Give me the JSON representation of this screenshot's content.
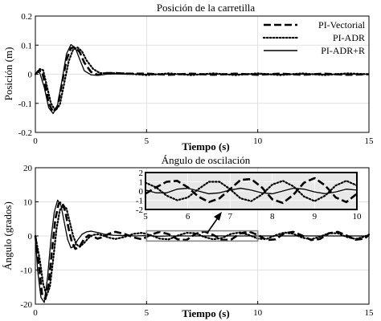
{
  "chart_data": [
    {
      "type": "line",
      "title": "Posición de la carretilla",
      "xlabel": "Tiempo (s)",
      "ylabel": "Posición (m)",
      "xlim": [
        0,
        15
      ],
      "ylim": [
        -0.2,
        0.2
      ],
      "x_ticks": [
        0,
        5,
        10,
        15
      ],
      "y_ticks": [
        -0.2,
        -0.1,
        0,
        0.1,
        0.2
      ],
      "x_tick_labels": [
        "0",
        "5",
        "10",
        "15"
      ],
      "y_tick_labels": [
        "-0.2",
        "-0.1",
        "0",
        "0.1",
        "0.2"
      ],
      "grid": true,
      "legend_position": "top-right",
      "series": [
        {
          "name": "PI-Vectorial",
          "style": "dashed",
          "x": [
            0,
            0.15,
            0.3,
            0.45,
            0.6,
            0.8,
            1.0,
            1.2,
            1.4,
            1.6,
            1.8,
            2.0,
            2.2,
            2.5,
            2.8,
            3.2,
            3.6,
            4.0,
            5.0,
            6.0,
            7.0,
            8.0,
            9.0,
            10.0,
            11.0,
            12.0,
            13.0,
            14.0,
            15.0
          ],
          "y": [
            0,
            0.012,
            0.01,
            -0.04,
            -0.1,
            -0.13,
            -0.11,
            -0.03,
            0.05,
            0.09,
            0.093,
            0.075,
            0.04,
            0.008,
            -0.002,
            0.004,
            0.004,
            0.002,
            0.002,
            -0.002,
            0.002,
            -0.002,
            0.002,
            -0.002,
            0.002,
            -0.002,
            0.002,
            -0.002,
            0.0
          ]
        },
        {
          "name": "PI-ADR",
          "style": "dotted",
          "x": [
            0,
            0.2,
            0.35,
            0.5,
            0.7,
            0.9,
            1.1,
            1.3,
            1.5,
            1.7,
            1.9,
            2.1,
            2.3,
            2.6,
            2.9,
            3.3,
            3.7,
            4.2,
            5.0,
            6.0,
            7.0,
            8.0,
            9.0,
            10.0,
            11.0,
            12.0,
            13.0,
            14.0,
            15.0
          ],
          "y": [
            0,
            0.018,
            0.014,
            -0.035,
            -0.1,
            -0.125,
            -0.105,
            -0.03,
            0.045,
            0.085,
            0.092,
            0.078,
            0.048,
            0.018,
            0.004,
            0.003,
            0.004,
            0.002,
            -0.003,
            0.003,
            -0.003,
            0.003,
            -0.003,
            0.003,
            -0.003,
            0.003,
            -0.003,
            0.003,
            0.0
          ]
        },
        {
          "name": "PI-ADR+R",
          "style": "solid",
          "x": [
            0,
            0.1,
            0.2,
            0.4,
            0.6,
            0.8,
            1.0,
            1.2,
            1.4,
            1.6,
            1.8,
            2.0,
            2.2,
            2.5,
            2.8,
            3.2,
            3.6,
            4.0,
            5.0,
            6.0,
            7.0,
            8.0,
            9.0,
            10.0,
            11.0,
            12.0,
            13.0,
            14.0,
            15.0
          ],
          "y": [
            0,
            0.008,
            0.004,
            -0.045,
            -0.115,
            -0.135,
            -0.105,
            -0.02,
            0.07,
            0.102,
            0.09,
            0.05,
            0.012,
            -0.002,
            -0.004,
            0.0,
            0.001,
            0.0,
            0.0,
            0.0,
            0.0,
            0.0,
            0.0,
            0.0,
            0.0,
            0.0,
            0.0,
            0.0,
            0.0
          ]
        }
      ]
    },
    {
      "type": "line",
      "title": "Ángulo de oscilación",
      "xlabel": "Tiempo (s)",
      "ylabel": "Ángulo (grados)",
      "xlim": [
        0,
        15
      ],
      "ylim": [
        -20,
        20
      ],
      "x_ticks": [
        0,
        5,
        10,
        15
      ],
      "y_ticks": [
        -20,
        -10,
        0,
        10,
        20
      ],
      "x_tick_labels": [
        "0",
        "5",
        "10",
        "15"
      ],
      "y_tick_labels": [
        "-20",
        "-10",
        "0",
        "10",
        "20"
      ],
      "grid": true,
      "series": [
        {
          "name": "PI-Vectorial",
          "style": "dashed",
          "x": [
            0,
            0.15,
            0.3,
            0.45,
            0.6,
            0.75,
            0.9,
            1.05,
            1.2,
            1.35,
            1.5,
            1.65,
            1.8,
            2.0,
            2.2,
            2.4,
            2.6,
            2.8,
            3.0,
            3.3,
            3.6,
            4.0,
            4.4,
            4.8,
            5.2,
            5.6,
            6.0,
            6.4,
            6.8,
            7.2,
            7.6,
            8.0,
            8.4,
            8.8,
            9.2,
            9.6,
            10.0,
            10.4,
            10.8,
            11.2,
            11.6,
            12.0,
            12.4,
            12.8,
            13.2,
            13.6,
            14.0,
            14.4,
            14.8,
            15.0
          ],
          "y": [
            0,
            -8,
            -17,
            -18.5,
            -14,
            -4,
            5,
            9.5,
            10,
            7,
            2,
            -2,
            -3.8,
            -3,
            -0.8,
            0.2,
            -0.2,
            -0.8,
            -0.4,
            0.6,
            1.2,
            0.6,
            -0.4,
            -1,
            0.4,
            1.2,
            0.5,
            -1.0,
            -1.2,
            0.6,
            1.3,
            0.3,
            -1.2,
            -1.1,
            0.7,
            1.3,
            0.3,
            -1.2,
            -1.0,
            0.8,
            1.2,
            0.1,
            -1.2,
            -0.9,
            0.8,
            1.2,
            0.1,
            -1.1,
            -0.8,
            0.3
          ]
        },
        {
          "name": "PI-ADR",
          "style": "dotted",
          "x": [
            0,
            0.2,
            0.35,
            0.5,
            0.65,
            0.8,
            0.95,
            1.1,
            1.25,
            1.4,
            1.55,
            1.7,
            1.85,
            2.0,
            2.2,
            2.4,
            2.6,
            2.8,
            3.0,
            3.3,
            3.6,
            4.0,
            4.4,
            4.8,
            5.2,
            5.6,
            6.0,
            6.4,
            6.8,
            7.2,
            7.6,
            8.0,
            8.4,
            8.8,
            9.2,
            9.6,
            10.0,
            10.4,
            10.8,
            11.2,
            11.6,
            12.0,
            12.4,
            12.8,
            13.2,
            13.6,
            14.0,
            14.4,
            14.8,
            15.0
          ],
          "y": [
            0,
            -7,
            -14,
            -17.5,
            -15,
            -7,
            2,
            7.5,
            9,
            8,
            4,
            0,
            -2.5,
            -3.2,
            -2,
            -0.5,
            0.3,
            0.5,
            0.2,
            -0.5,
            -0.9,
            -0.3,
            0.6,
            0.9,
            0.2,
            -0.8,
            -1.0,
            0.1,
            0.9,
            0.8,
            -0.3,
            -1.0,
            -0.6,
            0.6,
            1.0,
            0.3,
            -0.8,
            -0.9,
            0.2,
            1.0,
            0.6,
            -0.5,
            -1.0,
            -0.2,
            0.8,
            0.8,
            -0.3,
            -0.9,
            -0.2,
            0.4
          ]
        },
        {
          "name": "PI-ADR+R",
          "style": "solid",
          "x": [
            0,
            0.1,
            0.25,
            0.4,
            0.55,
            0.7,
            0.85,
            1.0,
            1.15,
            1.3,
            1.45,
            1.6,
            1.75,
            1.9,
            2.1,
            2.3,
            2.5,
            2.8,
            3.1,
            3.5,
            4.0,
            4.5,
            5.0,
            5.5,
            6.0,
            7.0,
            8.0,
            9.0,
            10.0,
            11.0,
            12.0,
            13.0,
            14.0,
            15.0
          ],
          "y": [
            0,
            -10,
            -18,
            -19.5,
            -12,
            -1,
            7,
            10.5,
            9,
            4,
            -1,
            -3.5,
            -3,
            -1.2,
            0.5,
            1.2,
            1.4,
            1.0,
            0.5,
            0.2,
            0.1,
            0.0,
            0.1,
            -0.1,
            0.0,
            0.0,
            0.0,
            0.0,
            0.0,
            0.0,
            0.0,
            0.0,
            0.0,
            0.0
          ]
        }
      ],
      "inset": {
        "xlim": [
          5,
          10
        ],
        "ylim": [
          -2,
          2
        ],
        "x_ticks": [
          5,
          6,
          7,
          8,
          9,
          10
        ],
        "y_ticks": [
          -2,
          -1,
          0,
          1,
          2
        ],
        "x_tick_labels": [
          "5",
          "6",
          "7",
          "8",
          "9",
          "10"
        ],
        "y_tick_labels": [
          "-2",
          "-1",
          "0",
          "1",
          "2"
        ],
        "highlight_region": {
          "x": [
            5,
            10
          ],
          "y": [
            -1.5,
            1.5
          ]
        },
        "series": [
          {
            "name": "PI-Vectorial",
            "style": "dashed",
            "x": [
              5.0,
              5.25,
              5.5,
              5.75,
              6.0,
              6.25,
              6.5,
              6.75,
              7.0,
              7.25,
              7.5,
              7.75,
              8.0,
              8.25,
              8.5,
              8.75,
              9.0,
              9.25,
              9.5,
              9.75,
              10.0
            ],
            "y": [
              -0.3,
              0.4,
              1.0,
              1.1,
              0.4,
              -0.6,
              -1.2,
              -0.8,
              0.2,
              1.2,
              1.3,
              0.4,
              -0.9,
              -1.3,
              -0.4,
              0.9,
              1.4,
              0.6,
              -0.7,
              -1.2,
              -0.3
            ]
          },
          {
            "name": "PI-ADR",
            "style": "dotted",
            "x": [
              5.0,
              5.25,
              5.5,
              5.75,
              6.0,
              6.25,
              6.5,
              6.75,
              7.0,
              7.25,
              7.5,
              7.75,
              8.0,
              8.25,
              8.5,
              8.75,
              9.0,
              9.25,
              9.5,
              9.75,
              10.0
            ],
            "y": [
              0.9,
              0.4,
              -0.5,
              -1.0,
              -0.7,
              0.2,
              1.0,
              1.0,
              0.2,
              -0.8,
              -1.1,
              -0.4,
              0.7,
              1.1,
              0.5,
              -0.6,
              -1.1,
              -0.5,
              0.6,
              1.1,
              0.6
            ]
          },
          {
            "name": "PI-ADR+R",
            "style": "solid",
            "x": [
              5.0,
              5.25,
              5.5,
              5.75,
              6.0,
              6.25,
              6.5,
              6.75,
              7.0,
              7.25,
              7.5,
              7.75,
              8.0,
              8.25,
              8.5,
              8.75,
              9.0,
              9.25,
              9.5,
              9.75,
              10.0
            ],
            "y": [
              0.1,
              -0.2,
              -0.2,
              0.2,
              0.3,
              0.0,
              -0.3,
              -0.2,
              0.1,
              0.3,
              0.1,
              -0.2,
              -0.3,
              0.0,
              0.3,
              0.2,
              -0.1,
              -0.3,
              -0.1,
              0.2,
              0.1
            ]
          }
        ]
      }
    }
  ]
}
